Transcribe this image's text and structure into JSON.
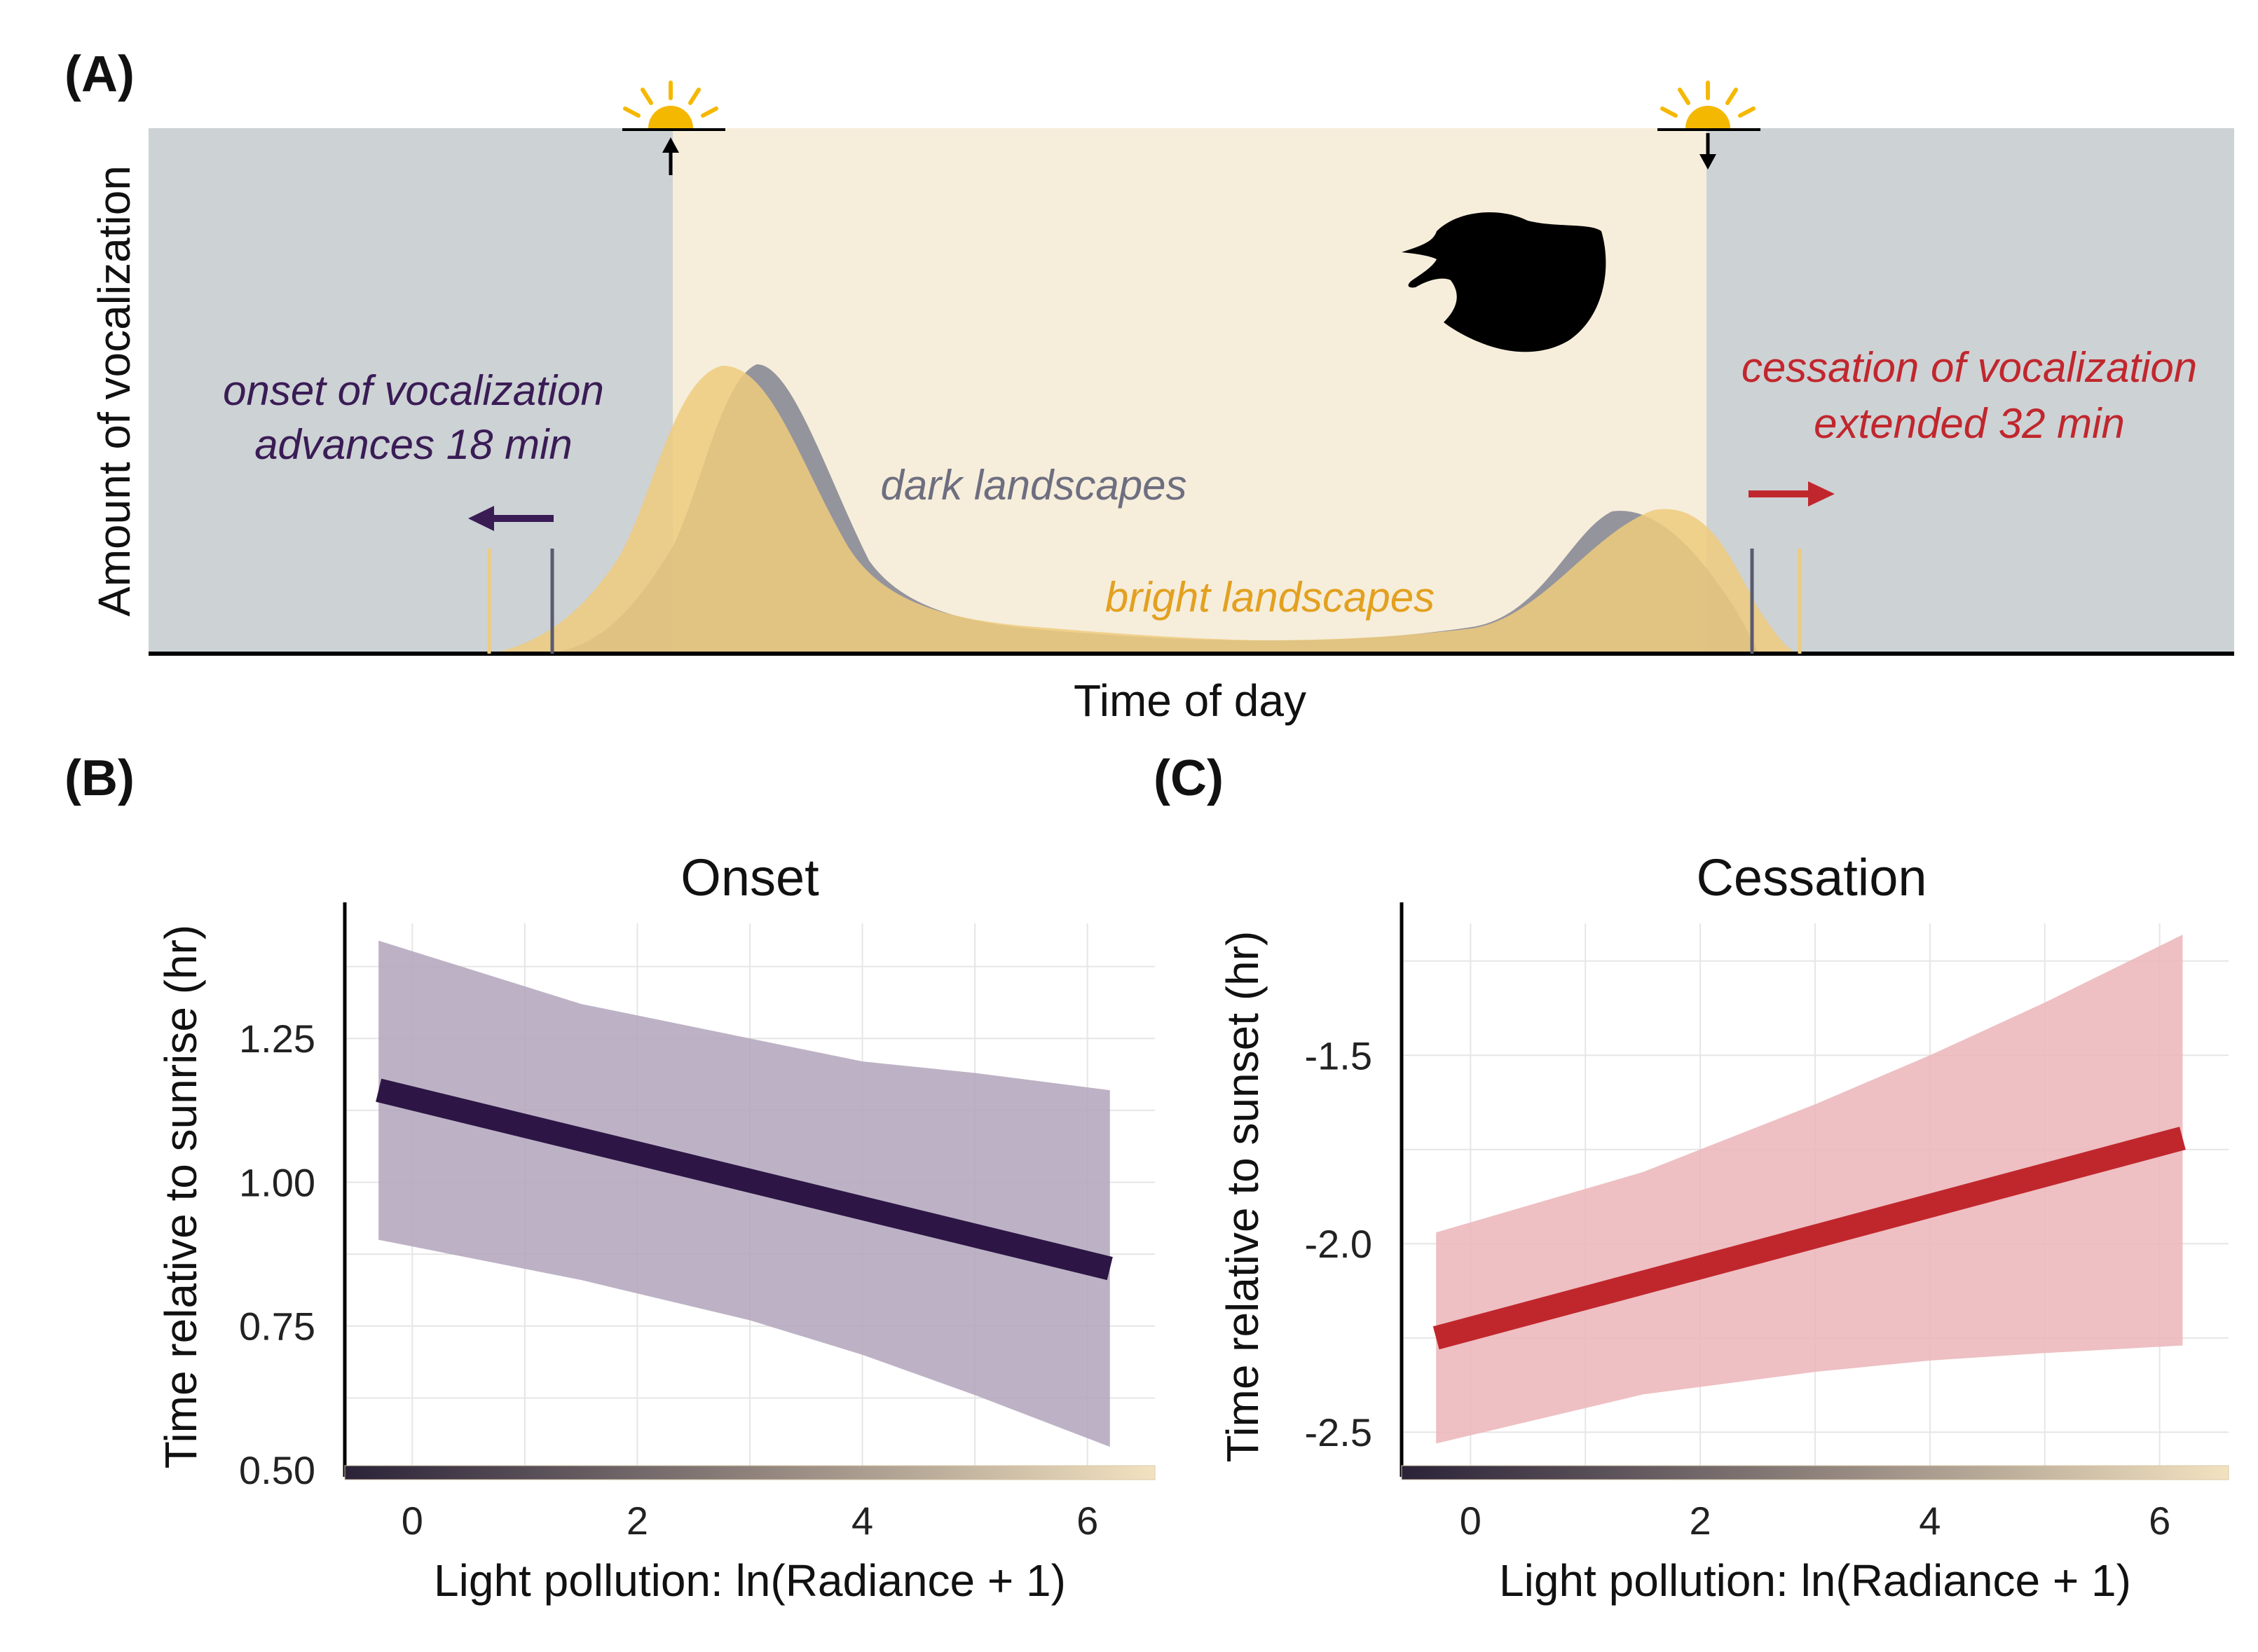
{
  "panel_labels": {
    "a": "(A)",
    "b": "(B)",
    "c": "(C)"
  },
  "panel_a": {
    "y_axis_title": "Amount of vocalization",
    "x_axis_title": "Time of day",
    "onset_annotation_line1": "onset of vocalization",
    "onset_annotation_line2": "advances 18 min",
    "cessation_annotation_line1": "cessation of vocalization",
    "cessation_annotation_line2": "extended 32 min",
    "dark_label": "dark landscapes",
    "bright_label": "bright landscapes",
    "icons": [
      "sunrise-icon",
      "sunset-icon",
      "bird-silhouette-icon",
      "left-arrow-icon",
      "right-arrow-icon"
    ]
  },
  "colors": {
    "night": "#cdd2d5",
    "day": "#f6eedb",
    "dark_curve": "#8a8a96",
    "bright_curve": "#efcb7e",
    "onset_text": "#3a1c55",
    "cessation_text": "#c0272d",
    "dark_label": "#6e6e80",
    "bright_label": "#e3a020",
    "sun": "#f5b800",
    "onset_line": "#2d1646",
    "onset_band": "#b2a5bb",
    "cessation_line": "#c0272d",
    "cessation_band": "#ebb5b8",
    "gradient_start": "#2a2238",
    "gradient_end": "#f3e2c0"
  },
  "chart_data": [
    {
      "type": "line",
      "title": "Onset",
      "xlabel": "Light pollution: ln(Radiance + 1)",
      "ylabel": "Time relative to sunrise (hr)",
      "xlim": [
        -0.6,
        6.6
      ],
      "ylim": [
        0.5,
        1.45
      ],
      "xticks": [
        "0",
        "2",
        "4",
        "6"
      ],
      "yticks": [
        "0.50",
        "0.75",
        "1.00",
        "1.25"
      ],
      "x": [
        -0.3,
        6.2
      ],
      "y": [
        1.16,
        0.85
      ],
      "band_x": [
        -0.3,
        1.5,
        3.0,
        4.0,
        5.0,
        6.2
      ],
      "band_upper": [
        1.42,
        1.31,
        1.25,
        1.21,
        1.19,
        1.16
      ],
      "band_lower": [
        0.9,
        0.83,
        0.76,
        0.7,
        0.63,
        0.54
      ]
    },
    {
      "type": "line",
      "title": "Cessation",
      "xlabel": "Light pollution: ln(Radiance + 1)",
      "ylabel": "Time relative to sunset (hr)",
      "xlim": [
        -0.6,
        6.6
      ],
      "ylim": [
        -2.6,
        -1.15
      ],
      "xticks": [
        "0",
        "2",
        "4",
        "6"
      ],
      "yticks": [
        "-2.5",
        "-2.0",
        "-1.5"
      ],
      "x": [
        -0.3,
        6.2
      ],
      "y": [
        -2.25,
        -1.72
      ],
      "band_x": [
        -0.3,
        1.5,
        3.0,
        4.0,
        5.0,
        6.2
      ],
      "band_upper": [
        -1.97,
        -1.81,
        -1.63,
        -1.5,
        -1.36,
        -1.18
      ],
      "band_lower": [
        -2.53,
        -2.4,
        -2.34,
        -2.31,
        -2.29,
        -2.27
      ]
    }
  ]
}
